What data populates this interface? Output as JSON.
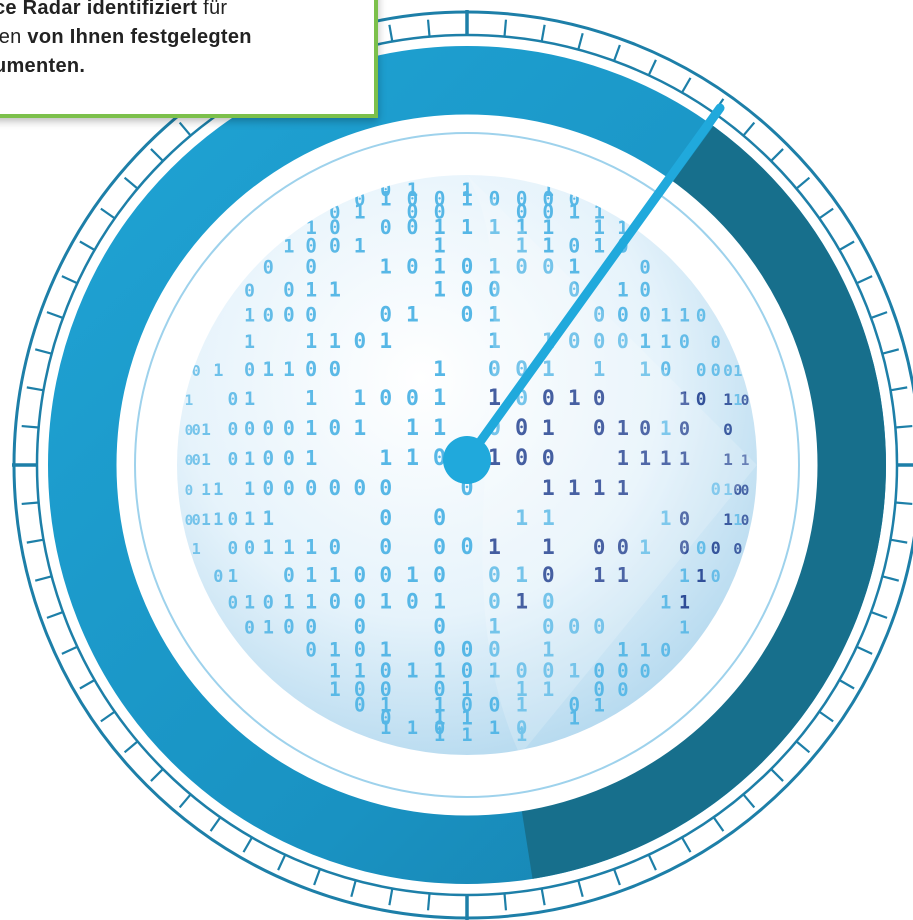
{
  "callout": {
    "line1": {
      "bold1": "ance Radar identifiziert",
      "plain1": " für"
    },
    "line2": {
      "plain1": "n den ",
      "bold1": "von Ihnen festgelegten"
    },
    "line3": {
      "bold1": "okumenten."
    }
  },
  "radar": {
    "icon": "radar-dial-icon",
    "globe_icon": "binary-data-globe-icon",
    "needle_level": 0.62
  },
  "colors": {
    "ring_light": "#1a9bcb",
    "ring_dark": "#176f8c",
    "needle": "#20a9dc",
    "tick": "#1d7fa8",
    "callout_border": "#7cc04b",
    "digits_light": "#56b7e6",
    "digits_dark": "#1b3a8c"
  }
}
